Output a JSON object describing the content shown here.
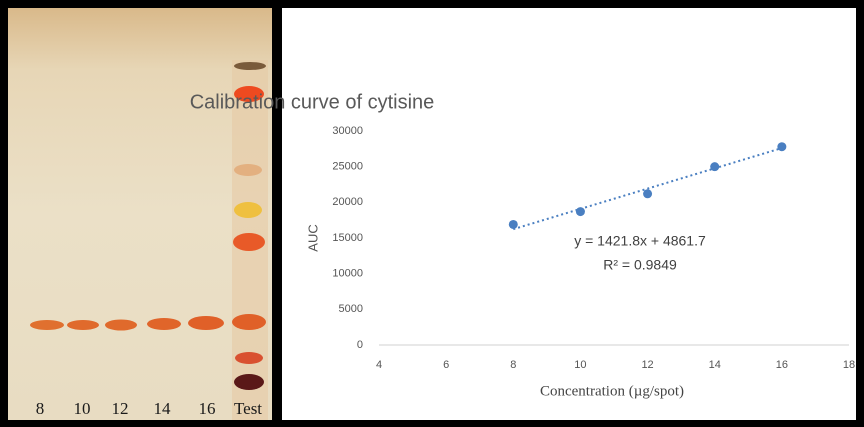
{
  "plate": {
    "lanes": [
      "8",
      "10",
      "12",
      "14",
      "16",
      "Test"
    ]
  },
  "chart_data": {
    "type": "scatter",
    "title": "Calibration curve of cytisine",
    "x_label": "Concentration (µg/spot)",
    "y_label": "AUC",
    "x": [
      8,
      10,
      12,
      14,
      16
    ],
    "values": [
      16900,
      18700,
      21200,
      25000,
      27800
    ],
    "color": "#4a7fc1",
    "xlim": [
      4,
      18
    ],
    "xticks": [
      4,
      6,
      8,
      10,
      12,
      14,
      16,
      18
    ],
    "ylim": [
      0,
      30000
    ],
    "yticks": [
      0,
      5000,
      10000,
      15000,
      20000,
      25000,
      30000
    ],
    "trendline": {
      "slope": 1421.8,
      "intercept": 4861.7,
      "style": "dotted",
      "equation": "y = 1421.8x + 4861.7",
      "r_squared": "R² = 0.9849"
    }
  }
}
